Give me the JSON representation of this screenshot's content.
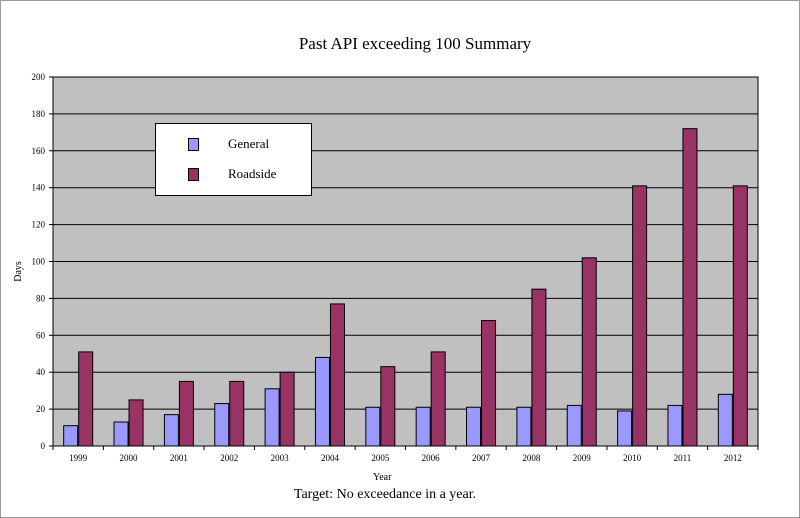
{
  "chart_data": {
    "type": "bar",
    "title": "Past API exceeding 100 Summary",
    "xlabel": "Year",
    "ylabel": "Days",
    "footnote": "Target: No exceedance in a year.",
    "categories": [
      "1999",
      "2000",
      "2001",
      "2002",
      "2003",
      "2004",
      "2005",
      "2006",
      "2007",
      "2008",
      "2009",
      "2010",
      "2011",
      "2012"
    ],
    "ylim": [
      0,
      200
    ],
    "yticks": [
      0,
      20,
      40,
      60,
      80,
      100,
      120,
      140,
      160,
      180,
      200
    ],
    "grid": true,
    "legend_position": "top-left",
    "series": [
      {
        "name": "General",
        "color": "#9999FF",
        "values": [
          11,
          13,
          17,
          23,
          31,
          48,
          21,
          21,
          21,
          21,
          22,
          19,
          22,
          28
        ]
      },
      {
        "name": "Roadside",
        "color": "#993366",
        "values": [
          51,
          25,
          35,
          35,
          40,
          77,
          43,
          51,
          68,
          85,
          102,
          141,
          172,
          141
        ]
      }
    ],
    "plot_background": "#C0C0C0"
  }
}
